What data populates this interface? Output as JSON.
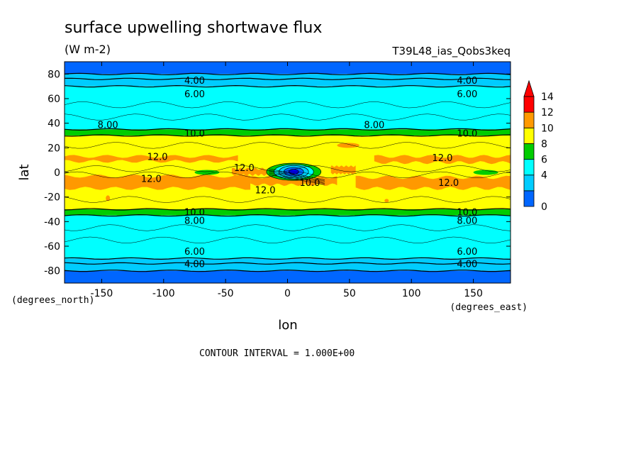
{
  "chart_data": {
    "type": "heatmap",
    "title": "surface upwelling shortwave flux",
    "units": "(W m-2)",
    "experiment": "T39L48_ias_Qobs3keq",
    "xlabel": "lon",
    "ylabel": "lat",
    "x_units_label": "(degrees_east)",
    "y_units_label": "(degrees_north)",
    "xlim": [
      -180,
      180
    ],
    "ylim": [
      -90,
      90
    ],
    "x_ticks": [
      -150,
      -100,
      -50,
      0,
      50,
      100,
      150
    ],
    "y_ticks": [
      80,
      60,
      40,
      20,
      0,
      -20,
      -40,
      -60,
      -80
    ],
    "x_tick_labels": [
      "-150",
      "-100",
      "-50",
      "0",
      "50",
      "100",
      "150"
    ],
    "y_tick_labels": [
      "80",
      "60",
      "40",
      "20",
      "0",
      "-20",
      "-40",
      "-60",
      "-80"
    ],
    "contour_interval_text": "CONTOUR INTERVAL = 1.000E+00",
    "colorbar": {
      "levels": [
        0,
        2,
        4,
        6,
        8,
        10,
        12,
        14
      ],
      "labels": [
        "0",
        "4",
        "6",
        "8",
        "10",
        "12",
        "14"
      ],
      "label_values": [
        0,
        4,
        6,
        8,
        10,
        12,
        14
      ],
      "colors": [
        "#0000ff",
        "#0066ff",
        "#00ccff",
        "#00ffff",
        "#00cc00",
        "#ffff00",
        "#ff9900",
        "#ff0000"
      ],
      "over_color": "#ff0000"
    },
    "zonal_bands": [
      {
        "lat_range": [
          80,
          90
        ],
        "range": "< 4",
        "color": "#0066ff"
      },
      {
        "lat_range": [
          70,
          80
        ],
        "range": "4-6",
        "color": "#00ccff"
      },
      {
        "lat_range": [
          35,
          70
        ],
        "range": "6-8",
        "color": "#00ffff"
      },
      {
        "lat_range": [
          30,
          35
        ],
        "range": "8-10",
        "color": "#00cc00"
      },
      {
        "lat_range": [
          -30,
          30
        ],
        "range": "10-12",
        "color": "#ffff00"
      },
      {
        "lat_range": [
          -35,
          -30
        ],
        "range": "8-10",
        "color": "#00cc00"
      },
      {
        "lat_range": [
          -70,
          -35
        ],
        "range": "6-8",
        "color": "#00ffff"
      },
      {
        "lat_range": [
          -80,
          -70
        ],
        "range": "4-6",
        "color": "#00ccff"
      },
      {
        "lat_range": [
          -90,
          -80
        ],
        "range": "< 4",
        "color": "#0066ff"
      }
    ],
    "regions": [
      {
        "kind": "band12",
        "lon": [
          -180,
          180
        ],
        "lat": [
          8,
          13
        ],
        "value": 12
      },
      {
        "kind": "band12",
        "lon": [
          -180,
          180
        ],
        "lat": [
          -13,
          -4
        ],
        "value": 12
      },
      {
        "kind": "patch8",
        "lon": [
          -75,
          -55
        ],
        "lat": [
          -2,
          2
        ],
        "value": 9
      },
      {
        "kind": "patch8",
        "lon": [
          150,
          170
        ],
        "lat": [
          -2,
          2
        ],
        "value": 9
      },
      {
        "kind": "low",
        "lon": [
          -10,
          25
        ],
        "lat": [
          -5,
          6
        ],
        "value": 2
      },
      {
        "kind": "high",
        "lon": [
          45,
          60
        ],
        "lat": [
          20,
          25
        ],
        "value": 12
      }
    ],
    "contour_labels": [
      {
        "text": "4.00",
        "lon": -75,
        "lat": 75
      },
      {
        "text": "4.00",
        "lon": 145,
        "lat": 75
      },
      {
        "text": "6.00",
        "lon": -75,
        "lat": 64
      },
      {
        "text": "6.00",
        "lon": 145,
        "lat": 64
      },
      {
        "text": "8.00",
        "lon": -145,
        "lat": 39
      },
      {
        "text": "8.00",
        "lon": 70,
        "lat": 39
      },
      {
        "text": "10.0",
        "lon": -75,
        "lat": 32
      },
      {
        "text": "10.0",
        "lon": 145,
        "lat": 32
      },
      {
        "text": "12.0",
        "lon": -105,
        "lat": 13
      },
      {
        "text": "12.0",
        "lon": 125,
        "lat": 12
      },
      {
        "text": "12.0",
        "lon": -35,
        "lat": 4
      },
      {
        "text": "12.0",
        "lon": -110,
        "lat": -5
      },
      {
        "text": "12.0",
        "lon": -18,
        "lat": -14
      },
      {
        "text": "12.0",
        "lon": 130,
        "lat": -8
      },
      {
        "text": "10.0",
        "lon": 18,
        "lat": -8
      },
      {
        "text": "10.0",
        "lon": -75,
        "lat": -32
      },
      {
        "text": "10.0",
        "lon": 145,
        "lat": -32
      },
      {
        "text": "8.00",
        "lon": -75,
        "lat": -39
      },
      {
        "text": "8.00",
        "lon": 145,
        "lat": -39
      },
      {
        "text": "6.00",
        "lon": -75,
        "lat": -64
      },
      {
        "text": "6.00",
        "lon": 145,
        "lat": -64
      },
      {
        "text": "4.00",
        "lon": -75,
        "lat": -74
      },
      {
        "text": "4.00",
        "lon": 145,
        "lat": -74
      }
    ]
  }
}
